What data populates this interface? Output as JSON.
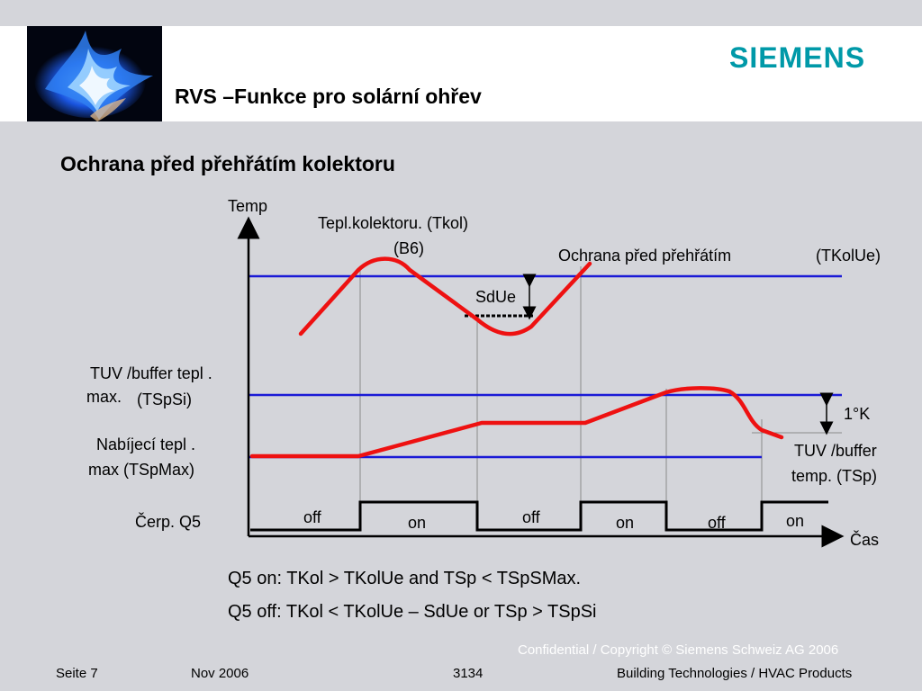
{
  "header": {
    "title": "RVS –Funkce pro solární ohřev",
    "brand": "SIEMENS",
    "logo_icon": "blue-flame-icon"
  },
  "slide": {
    "subtitle": "Ochrana před přehřátím kolektoru"
  },
  "diagram": {
    "y_axis_label": "Temp",
    "x_axis_label": "Čas",
    "collector_label_1": "Tepl.kolektoru. (Tkol)",
    "collector_label_2": "(B6)",
    "overheat_label": "Ochrana před přehřátím",
    "overheat_code": "(TKolUe)",
    "sdue_label": "SdUe",
    "tspsi_label_1": "TUV /buffer  tepl .",
    "tspsi_label_2": "max.",
    "tspsi_label_3": "(TSpSi)",
    "tspmax_label_1": "Nabíjecí tepl  .",
    "tspmax_label_2": "max (TSpMax)",
    "delta_label": "1°K",
    "tsp_label_1": "TUV /buffer",
    "tsp_label_2": "temp. (TSp)",
    "pump_label": "Čerp. Q5",
    "states": [
      "off",
      "on",
      "off",
      "on",
      "off",
      "on"
    ],
    "colors": {
      "threshold": "#1a1ad6",
      "curve": "#ee1111",
      "axis": "#000000"
    }
  },
  "rules": {
    "on": "Q5 on: TKol > TKolUe and TSp < TSpSMax.",
    "off": "Q5 off: TKol < TKolUe – SdUe or TSp > TSpSi"
  },
  "footer": {
    "confidential": "Confidential / Copyright © Siemens Schweiz AG 2006",
    "page": "Seite 7",
    "date": "Nov 2006",
    "doc_number": "3134",
    "division": "Building Technologies / HVAC Products"
  }
}
